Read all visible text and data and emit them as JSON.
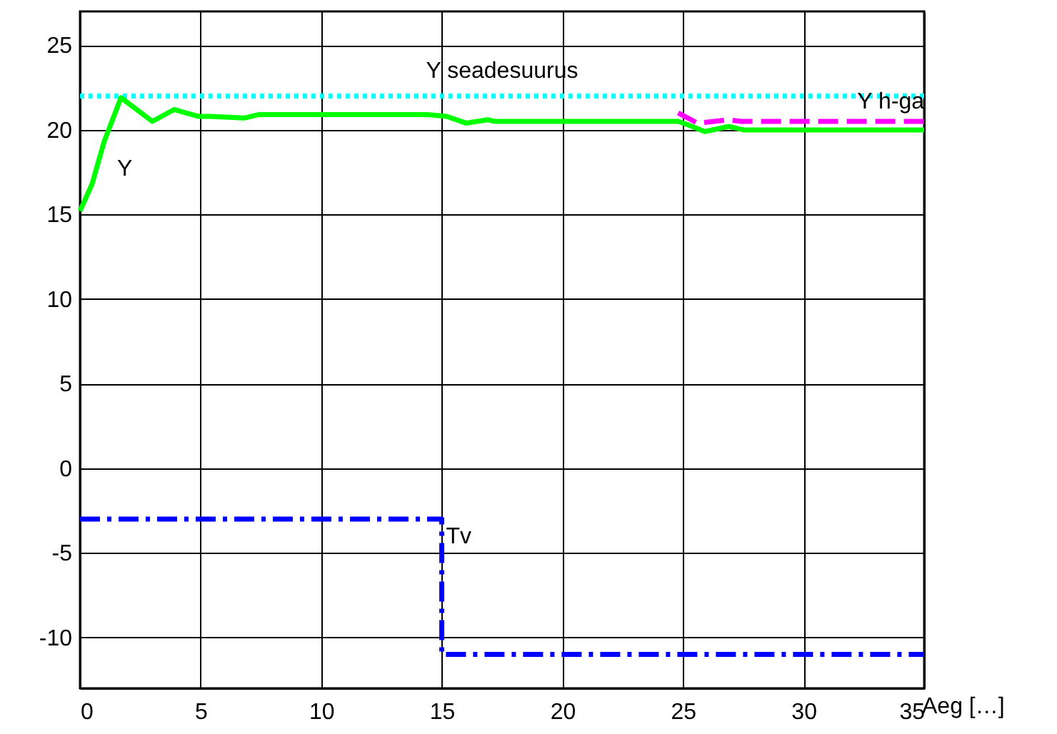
{
  "chart_data": {
    "type": "line",
    "xlabel": "Aeg […]",
    "xlim": [
      0,
      35
    ],
    "xticks": [
      0,
      5,
      10,
      15,
      20,
      25,
      30,
      35
    ],
    "ylim": [
      -13,
      27
    ],
    "yticks": [
      -10,
      -5,
      0,
      5,
      10,
      15,
      20,
      25
    ],
    "grid": true,
    "marker": "none",
    "series": [
      {
        "name": "Y seadesuurus",
        "color": "#00ffff",
        "line_style": "dotted",
        "x": [
          0,
          35
        ],
        "values": [
          22,
          22
        ]
      },
      {
        "name": "Y h-ga",
        "color": "#ff00ff",
        "line_style": "dashed",
        "x": [
          24.8,
          25.6,
          26.9,
          27.4,
          35
        ],
        "values": [
          21.0,
          20.4,
          20.6,
          20.5,
          20.5
        ]
      },
      {
        "name": "Y",
        "color": "#00ff00",
        "line_style": "solid",
        "x": [
          0,
          0.5,
          1,
          1.7,
          3.0,
          3.9,
          4.9,
          5.4,
          6.8,
          7.4,
          14.4,
          15.2,
          16.0,
          16.9,
          17.2,
          24.8,
          25.2,
          25.9,
          26.9,
          27.5,
          35
        ],
        "values": [
          15.2,
          16.8,
          19.3,
          21.9,
          20.5,
          21.2,
          20.8,
          20.8,
          20.7,
          20.9,
          20.9,
          20.8,
          20.4,
          20.6,
          20.5,
          20.5,
          20.3,
          19.9,
          20.2,
          20.0,
          20.0
        ]
      },
      {
        "name": "Tv",
        "color": "#0000ff",
        "line_style": "dashdot",
        "x": [
          0,
          15,
          15,
          35
        ],
        "values": [
          -3,
          -3,
          -11,
          -11
        ]
      }
    ]
  }
}
